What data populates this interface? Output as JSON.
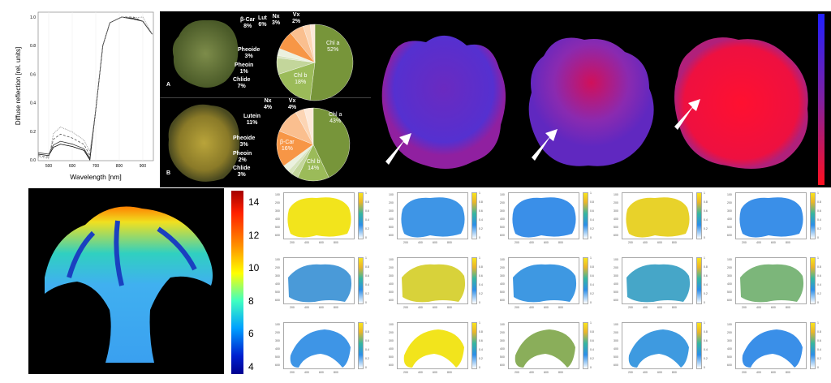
{
  "spectrum": {
    "ylabel": "Diffuse reflection [rel. units]",
    "xlabel": "Wavelength [nm]",
    "xticks": [
      "500",
      "600",
      "700",
      "800",
      "900"
    ],
    "yticks": [
      "0.0",
      "0.2",
      "0.4",
      "0.6",
      "0.8",
      "1.0"
    ],
    "xlim": [
      455,
      945
    ],
    "ylim": [
      0,
      1.02
    ]
  },
  "panel_labels": {
    "a": "A",
    "b": "B"
  },
  "pie_top": {
    "slices": [
      {
        "name": "Chl a",
        "value": 52,
        "pct": "52%",
        "color": "#77953a"
      },
      {
        "name": "Chl b",
        "value": 18,
        "pct": "18%",
        "color": "#9bbb59"
      },
      {
        "name": "Chlide",
        "value": 7,
        "pct": "7%",
        "color": "#c3d69b"
      },
      {
        "name": "Pheoin",
        "value": 1,
        "pct": "1%",
        "color": "#d7e4bd"
      },
      {
        "name": "Pheoide",
        "value": 3,
        "pct": "3%",
        "color": "#ebf1de"
      },
      {
        "name": "β-Car",
        "value": 8,
        "pct": "8%",
        "color": "#f79646"
      },
      {
        "name": "Lut",
        "value": 6,
        "pct": "6%",
        "color": "#fabf8f"
      },
      {
        "name": "Nx",
        "value": 3,
        "pct": "3%",
        "color": "#fcd5b4"
      },
      {
        "name": "Vx",
        "value": 2,
        "pct": "2%",
        "color": "#fde9d9"
      }
    ]
  },
  "pie_bottom": {
    "slices": [
      {
        "name": "Chl a",
        "value": 43,
        "pct": "43%",
        "color": "#77953a"
      },
      {
        "name": "Chl b",
        "value": 14,
        "pct": "14%",
        "color": "#9bbb59"
      },
      {
        "name": "Chlide",
        "value": 3,
        "pct": "3%",
        "color": "#c3d69b"
      },
      {
        "name": "Pheoin",
        "value": 2,
        "pct": "2%",
        "color": "#d7e4bd"
      },
      {
        "name": "Pheoide",
        "value": 3,
        "pct": "3%",
        "color": "#ebf1de"
      },
      {
        "name": "β-Car",
        "value": 16,
        "pct": "16%",
        "color": "#f79646"
      },
      {
        "name": "Lutein",
        "value": 11,
        "pct": "11%",
        "color": "#fabf8f"
      },
      {
        "name": "Nx",
        "value": 4,
        "pct": "4%",
        "color": "#fcd5b4"
      },
      {
        "name": "Vx",
        "value": 4,
        "pct": "4%",
        "color": "#fde9d9"
      }
    ]
  },
  "cross_colorbar": {
    "ticks": [
      "14",
      "12",
      "10",
      "8",
      "6",
      "4"
    ]
  },
  "small_panels": {
    "xticks": [
      "200",
      "400",
      "600",
      "800"
    ],
    "yticks": [
      "100",
      "200",
      "300",
      "400",
      "500",
      "600"
    ],
    "cticks": [
      "1",
      "0.8",
      "0.6",
      "0.4",
      "0.2",
      "0"
    ],
    "fills": [
      [
        "#f2e41c",
        "#3e95e6",
        "#3a8fe8",
        "#e8d22a",
        "#3a8fe8"
      ],
      [
        "#4a9ad8",
        "#d8d23a",
        "#3e98e2",
        "#46a6c8",
        "#7cb67a"
      ],
      [
        "#3e95e6",
        "#f2e41c",
        "#8aae5a",
        "#3e9ae0",
        "#3a8fe8"
      ]
    ]
  }
}
